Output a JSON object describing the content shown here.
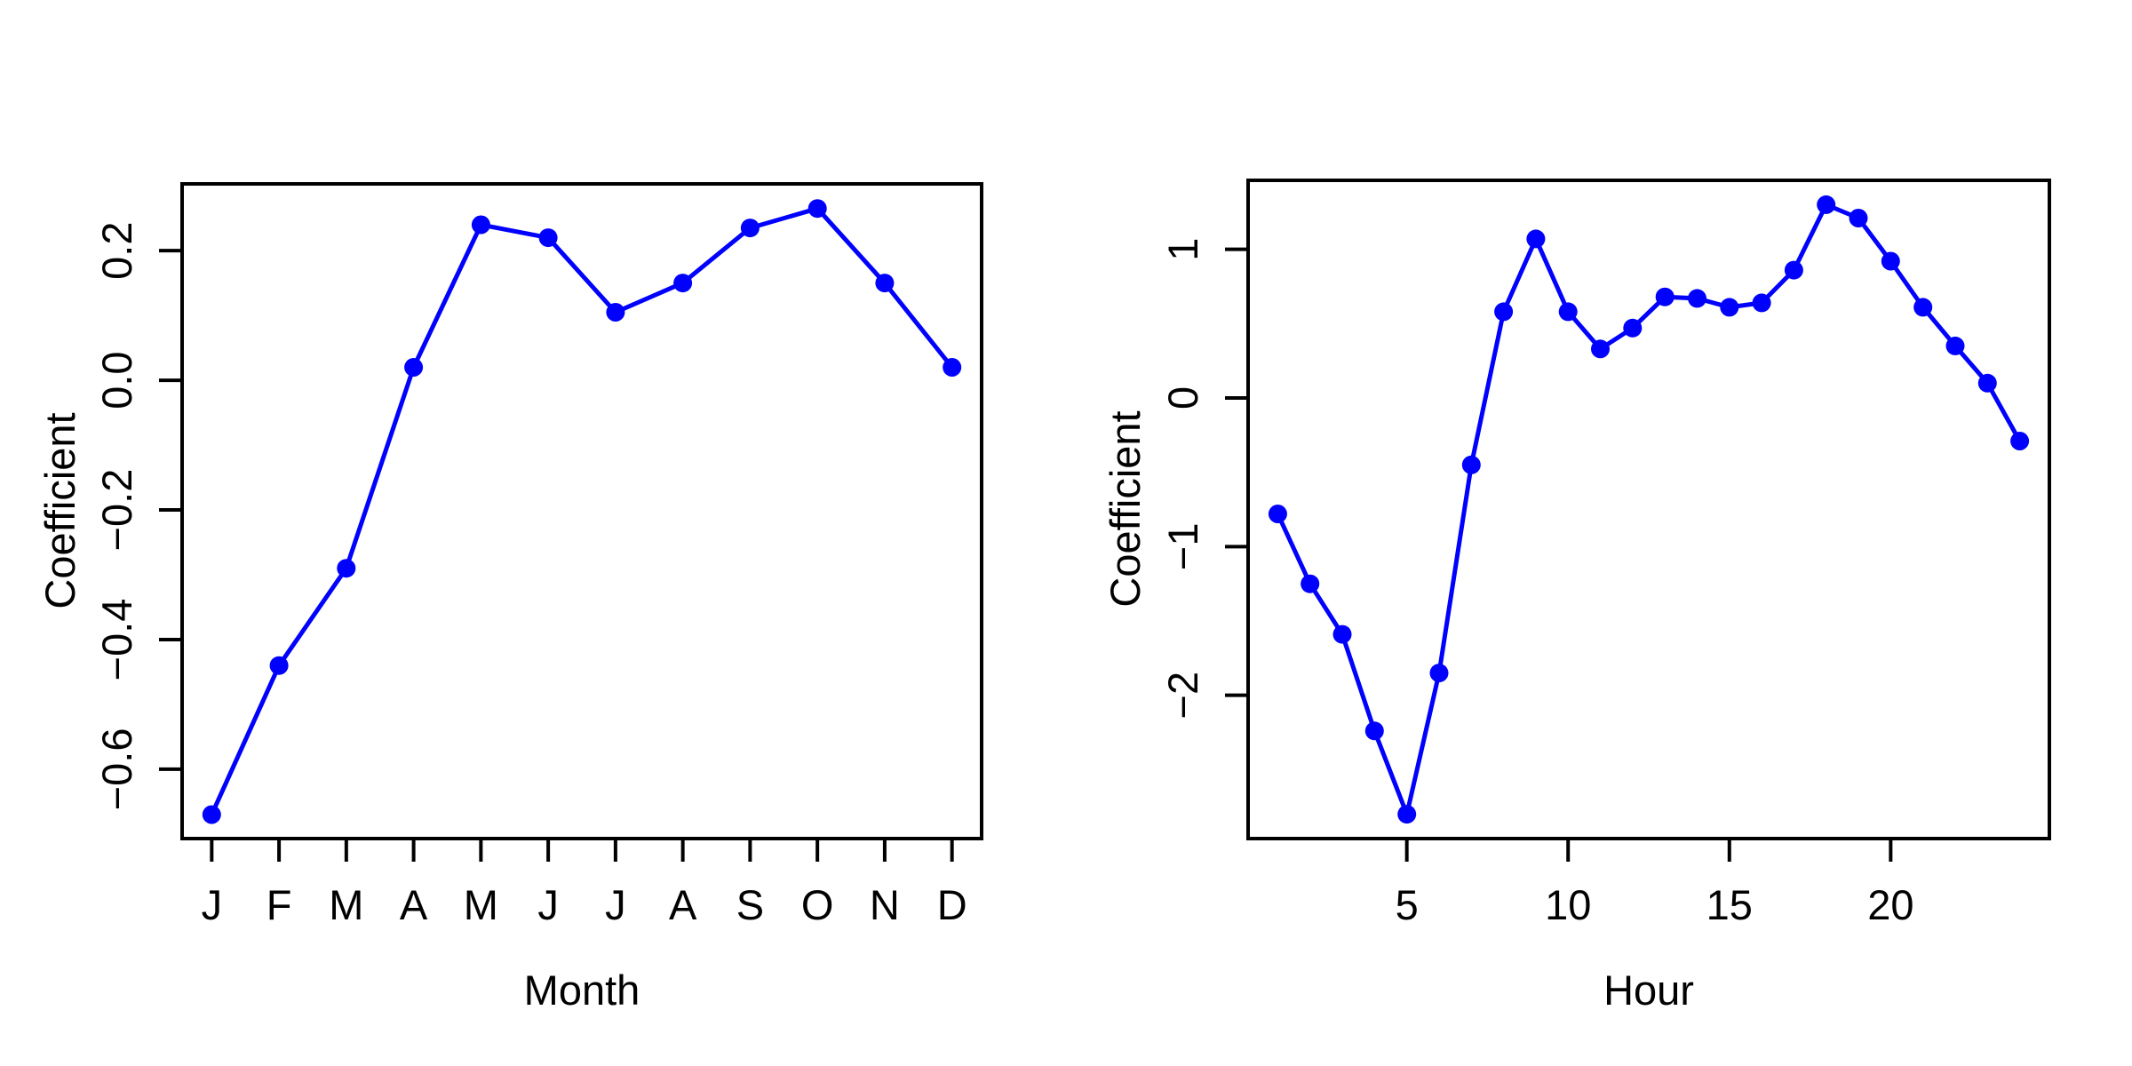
{
  "figure": {
    "background": "#ffffff",
    "series_color": "#0000ff",
    "axis_color": "#000000",
    "marker": "filled-circle"
  },
  "chart_data": [
    {
      "type": "line",
      "panel": "left",
      "title": "",
      "xlabel": "Month",
      "ylabel": "Coefficient",
      "categories": [
        "J",
        "F",
        "M",
        "A",
        "M",
        "J",
        "J",
        "A",
        "S",
        "O",
        "N",
        "D"
      ],
      "x": [
        1,
        2,
        3,
        4,
        5,
        6,
        7,
        8,
        9,
        10,
        11,
        12
      ],
      "values": [
        -0.67,
        -0.44,
        -0.29,
        0.02,
        0.24,
        0.22,
        0.105,
        0.15,
        0.235,
        0.265,
        0.15,
        0.02
      ],
      "xticks": {
        "values": [
          1,
          2,
          3,
          4,
          5,
          6,
          7,
          8,
          9,
          10,
          11,
          12
        ],
        "labels": [
          "J",
          "F",
          "M",
          "A",
          "M",
          "J",
          "J",
          "A",
          "S",
          "O",
          "N",
          "D"
        ]
      },
      "yticks": {
        "values": [
          0.2,
          0.0,
          -0.2,
          -0.4,
          -0.6
        ],
        "labels": [
          "0.2",
          "0.0",
          "−0.2",
          "−0.4",
          "−0.6"
        ]
      },
      "xlim": [
        0.56,
        12.44
      ],
      "ylim": [
        -0.707,
        0.303
      ],
      "grid": false,
      "legend": "none"
    },
    {
      "type": "line",
      "panel": "right",
      "title": "",
      "xlabel": "Hour",
      "ylabel": "Coefficient",
      "x": [
        1,
        2,
        3,
        4,
        5,
        6,
        7,
        8,
        9,
        10,
        11,
        12,
        13,
        14,
        15,
        16,
        17,
        18,
        19,
        20,
        21,
        22,
        23,
        24
      ],
      "values": [
        -0.78,
        -1.25,
        -1.59,
        -2.24,
        -2.8,
        -1.85,
        -0.45,
        0.58,
        1.07,
        0.58,
        0.33,
        0.47,
        0.68,
        0.67,
        0.61,
        0.64,
        0.86,
        1.3,
        1.21,
        0.92,
        0.61,
        0.35,
        0.1,
        -0.29
      ],
      "xticks": {
        "values": [
          5,
          10,
          15,
          20
        ],
        "labels": [
          "5",
          "10",
          "15",
          "20"
        ]
      },
      "yticks": {
        "values": [
          1,
          0,
          -1,
          -2
        ],
        "labels": [
          "1",
          "0",
          "−1",
          "−2"
        ]
      },
      "xlim": [
        0.08,
        24.92
      ],
      "ylim": [
        -2.964,
        1.464
      ],
      "grid": false,
      "legend": "none"
    }
  ]
}
